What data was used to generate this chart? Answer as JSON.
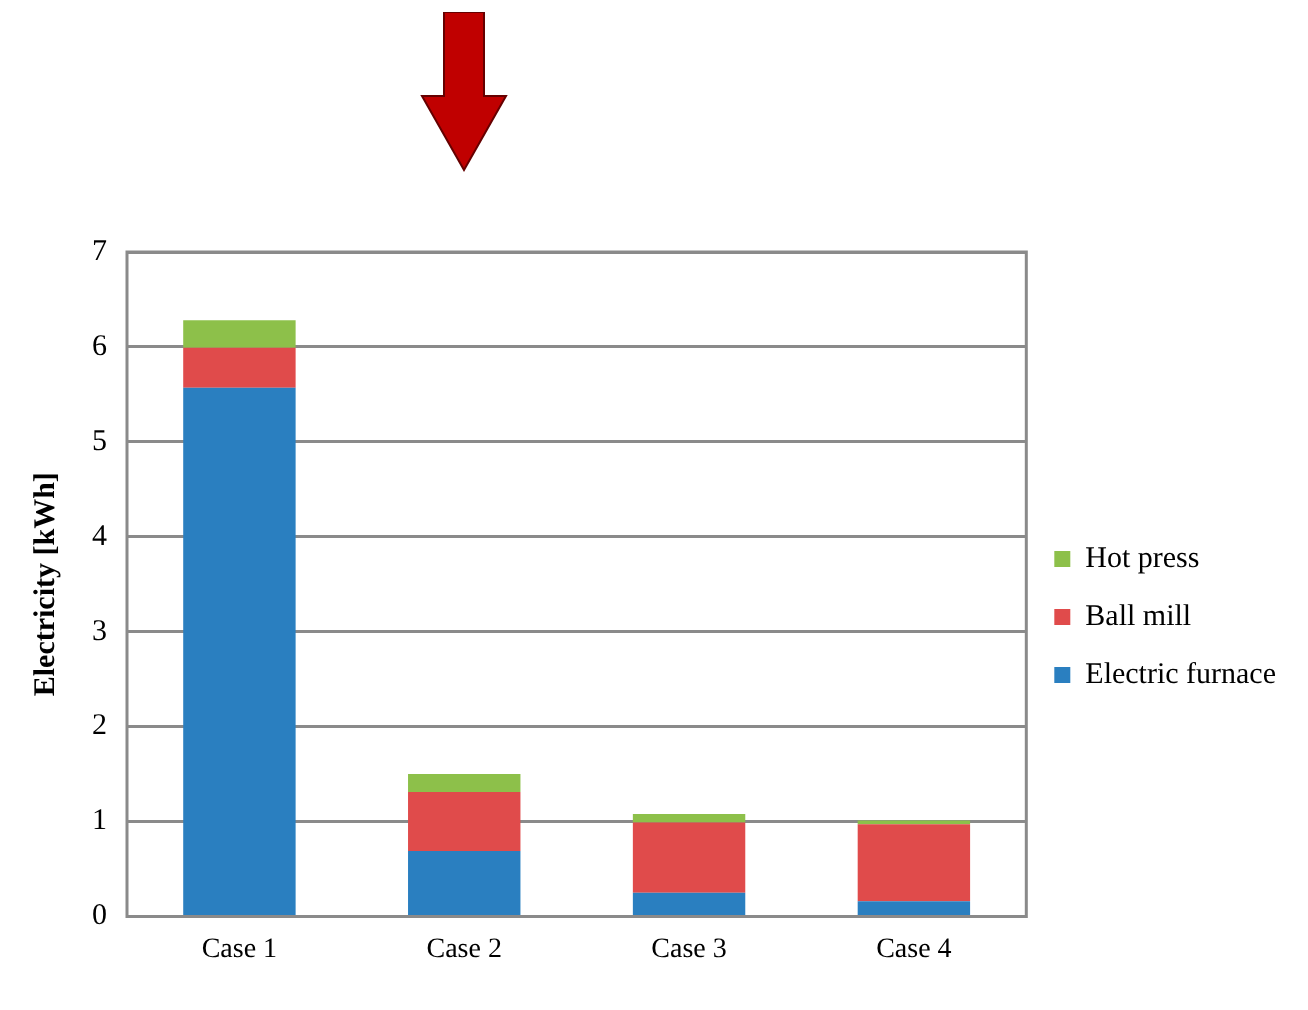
{
  "chart_data": {
    "type": "bar",
    "stacked": true,
    "categories": [
      "Case 1",
      "Case 2",
      "Case 3",
      "Case 4"
    ],
    "series": [
      {
        "name": "Electric furnace",
        "color": "#2a7fc0",
        "values": [
          5.57,
          0.69,
          0.25,
          0.16
        ]
      },
      {
        "name": "Ball mill",
        "color": "#e04b4b",
        "values": [
          0.42,
          0.62,
          0.74,
          0.81
        ]
      },
      {
        "name": "Hot press",
        "color": "#8dc04a",
        "values": [
          0.29,
          0.19,
          0.09,
          0.04
        ]
      }
    ],
    "ylabel": "Electricity [kWh]",
    "ylim": [
      0,
      7
    ],
    "yticks": [
      0,
      1,
      2,
      3,
      4,
      5,
      6,
      7
    ],
    "grid": "y",
    "legend": "right"
  }
}
